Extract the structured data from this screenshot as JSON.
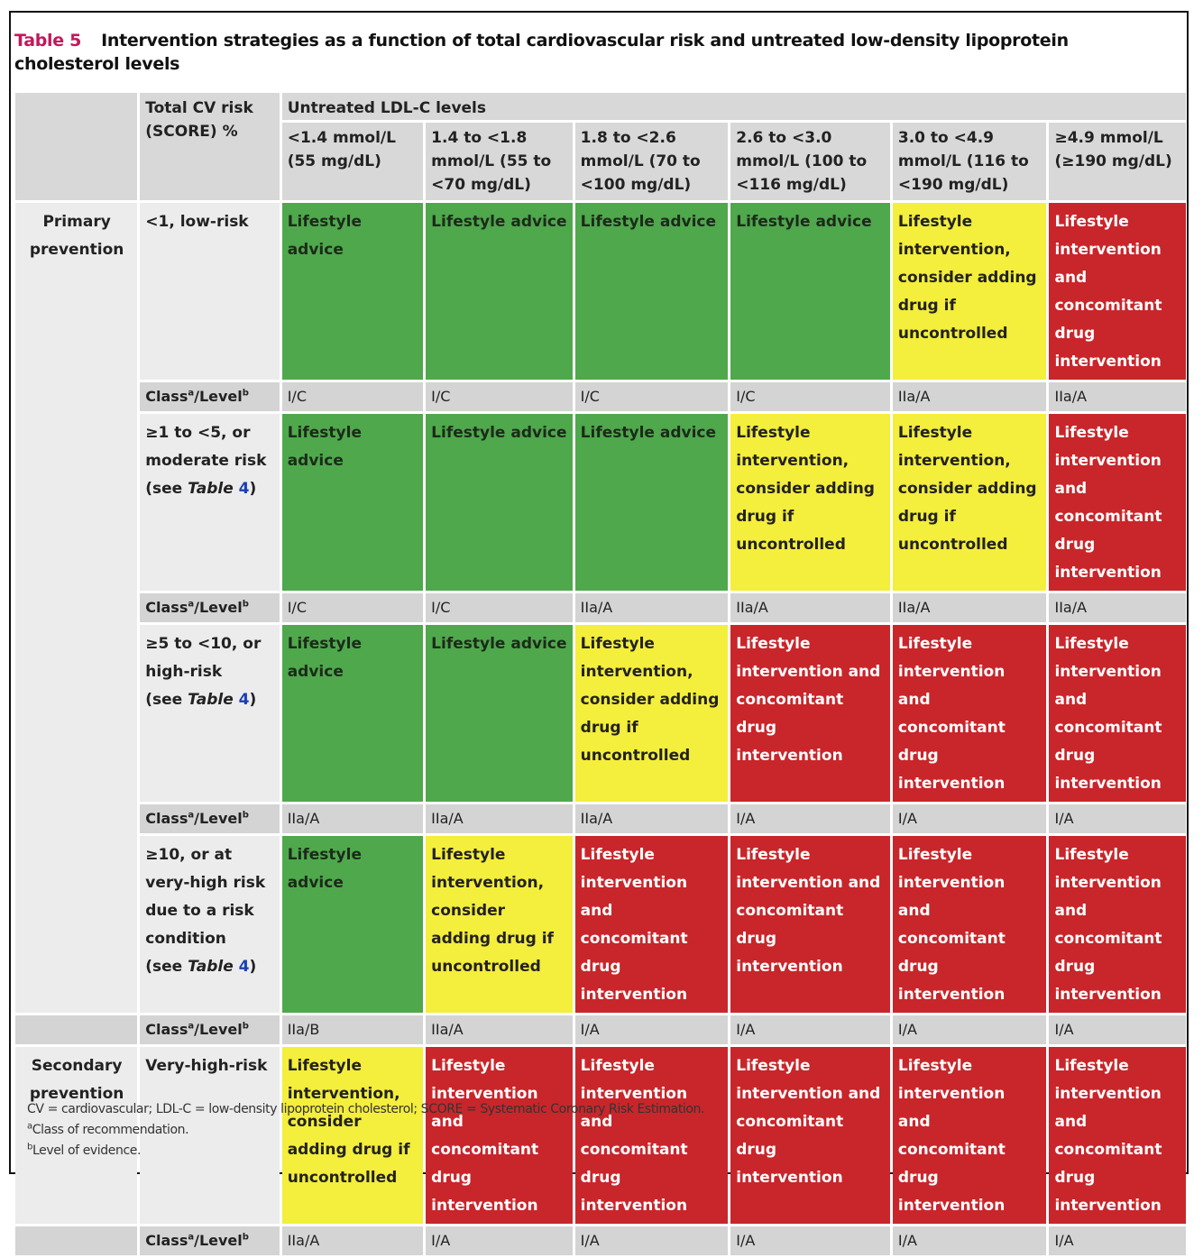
{
  "title": {
    "label": "Table 5",
    "text": "Intervention strategies as a function of total cardiovascular risk and untreated low-density lipoprotein cholesterol levels"
  },
  "header": {
    "risk": "Total CV risk (SCORE) %",
    "ldl": "Untreated LDL-C levels",
    "columns": [
      "<1.4 mmol/L (55 mg/dL)",
      "1.4 to <1.8 mmol/L (55 to <70 mg/dL)",
      "1.8 to <2.6 mmol/L (70 to <100 mg/dL)",
      "2.6 to <3.0 mmol/L (100 to <116 mg/dL)",
      "3.0 to <4.9 mmol/L (116 to <190 mg/dL)",
      "≥4.9 mmol/L (≥190 mg/dL)"
    ]
  },
  "class_label": {
    "class": "Class",
    "a": "a",
    "level": "/Level",
    "b": "b"
  },
  "groups": [
    {
      "name": "Primary prevention",
      "rows": [
        {
          "risk": "<1, low-risk",
          "cells": [
            {
              "text": "Lifestyle advice",
              "color": "green"
            },
            {
              "text": "Lifestyle advice",
              "color": "green"
            },
            {
              "text": "Lifestyle advice",
              "color": "green"
            },
            {
              "text": "Lifestyle advice",
              "color": "green"
            },
            {
              "text": "Lifestyle intervention, consider adding drug if uncontrolled",
              "color": "yellow"
            },
            {
              "text": "Lifestyle intervention and concomitant drug intervention",
              "color": "red"
            }
          ],
          "classes": [
            "I/C",
            "I/C",
            "I/C",
            "I/C",
            "IIa/A",
            "IIa/A"
          ]
        },
        {
          "risk": "≥1 to <5, or moderate risk",
          "ref": {
            "pre": "(see ",
            "table": "Table",
            "num": "4",
            "post": ")"
          },
          "cells": [
            {
              "text": "Lifestyle advice",
              "color": "green"
            },
            {
              "text": "Lifestyle advice",
              "color": "green"
            },
            {
              "text": "Lifestyle advice",
              "color": "green"
            },
            {
              "text": "Lifestyle intervention, consider adding drug if uncontrolled",
              "color": "yellow"
            },
            {
              "text": "Lifestyle intervention, consider adding drug if uncontrolled",
              "color": "yellow"
            },
            {
              "text": "Lifestyle intervention and concomitant drug intervention",
              "color": "red"
            }
          ],
          "classes": [
            "I/C",
            "I/C",
            "IIa/A",
            "IIa/A",
            "IIa/A",
            "IIa/A"
          ]
        },
        {
          "risk": "≥5 to <10, or high-risk",
          "ref": {
            "pre": "(see ",
            "table": "Table",
            "num": "4",
            "post": ")"
          },
          "cells": [
            {
              "text": "Lifestyle advice",
              "color": "green"
            },
            {
              "text": "Lifestyle advice",
              "color": "green"
            },
            {
              "text": "Lifestyle intervention, consider adding drug if uncontrolled",
              "color": "yellow"
            },
            {
              "text": "Lifestyle intervention and concomitant drug intervention",
              "color": "red"
            },
            {
              "text": "Lifestyle intervention and concomitant drug intervention",
              "color": "red"
            },
            {
              "text": "Lifestyle intervention and concomitant drug intervention",
              "color": "red"
            }
          ],
          "classes": [
            "IIa/A",
            "IIa/A",
            "IIa/A",
            "I/A",
            "I/A",
            "I/A"
          ]
        },
        {
          "risk": "≥10, or at very-high risk due to a risk condition",
          "ref": {
            "pre": "(see ",
            "table": "Table",
            "num": "4",
            "post": ")"
          },
          "cells": [
            {
              "text": "Lifestyle advice",
              "color": "green"
            },
            {
              "text": "Lifestyle intervention, consider adding drug if uncontrolled",
              "color": "yellow"
            },
            {
              "text": "Lifestyle intervention and concomitant drug intervention",
              "color": "red"
            },
            {
              "text": "Lifestyle intervention and concomitant drug intervention",
              "color": "red"
            },
            {
              "text": "Lifestyle intervention and concomitant drug intervention",
              "color": "red"
            },
            {
              "text": "Lifestyle intervention and concomitant drug intervention",
              "color": "red"
            }
          ],
          "classes": [
            "IIa/B",
            "IIa/A",
            "I/A",
            "I/A",
            "I/A",
            "I/A"
          ]
        }
      ]
    },
    {
      "name": "Secondary prevention",
      "rows": [
        {
          "risk": "Very-high-risk",
          "cells": [
            {
              "text": "Lifestyle intervention, consider adding drug if uncontrolled",
              "color": "yellow"
            },
            {
              "text": "Lifestyle intervention and concomitant drug intervention",
              "color": "red"
            },
            {
              "text": "Lifestyle intervention and concomitant drug intervention",
              "color": "red"
            },
            {
              "text": "Lifestyle intervention and concomitant drug intervention",
              "color": "red"
            },
            {
              "text": "Lifestyle intervention and concomitant drug intervention",
              "color": "red"
            },
            {
              "text": "Lifestyle intervention and concomitant drug intervention",
              "color": "red"
            }
          ],
          "classes": [
            "IIa/A",
            "I/A",
            "I/A",
            "I/A",
            "I/A",
            "I/A"
          ]
        }
      ]
    }
  ],
  "footnotes": {
    "abbrev": "CV = cardiovascular; LDL-C = low-density lipoprotein cholesterol; SCORE = Systematic Coronary Risk Estimation.",
    "a": {
      "mark": "a",
      "text": "Class of recommendation."
    },
    "b": {
      "mark": "b",
      "text": "Level of evidence."
    }
  }
}
